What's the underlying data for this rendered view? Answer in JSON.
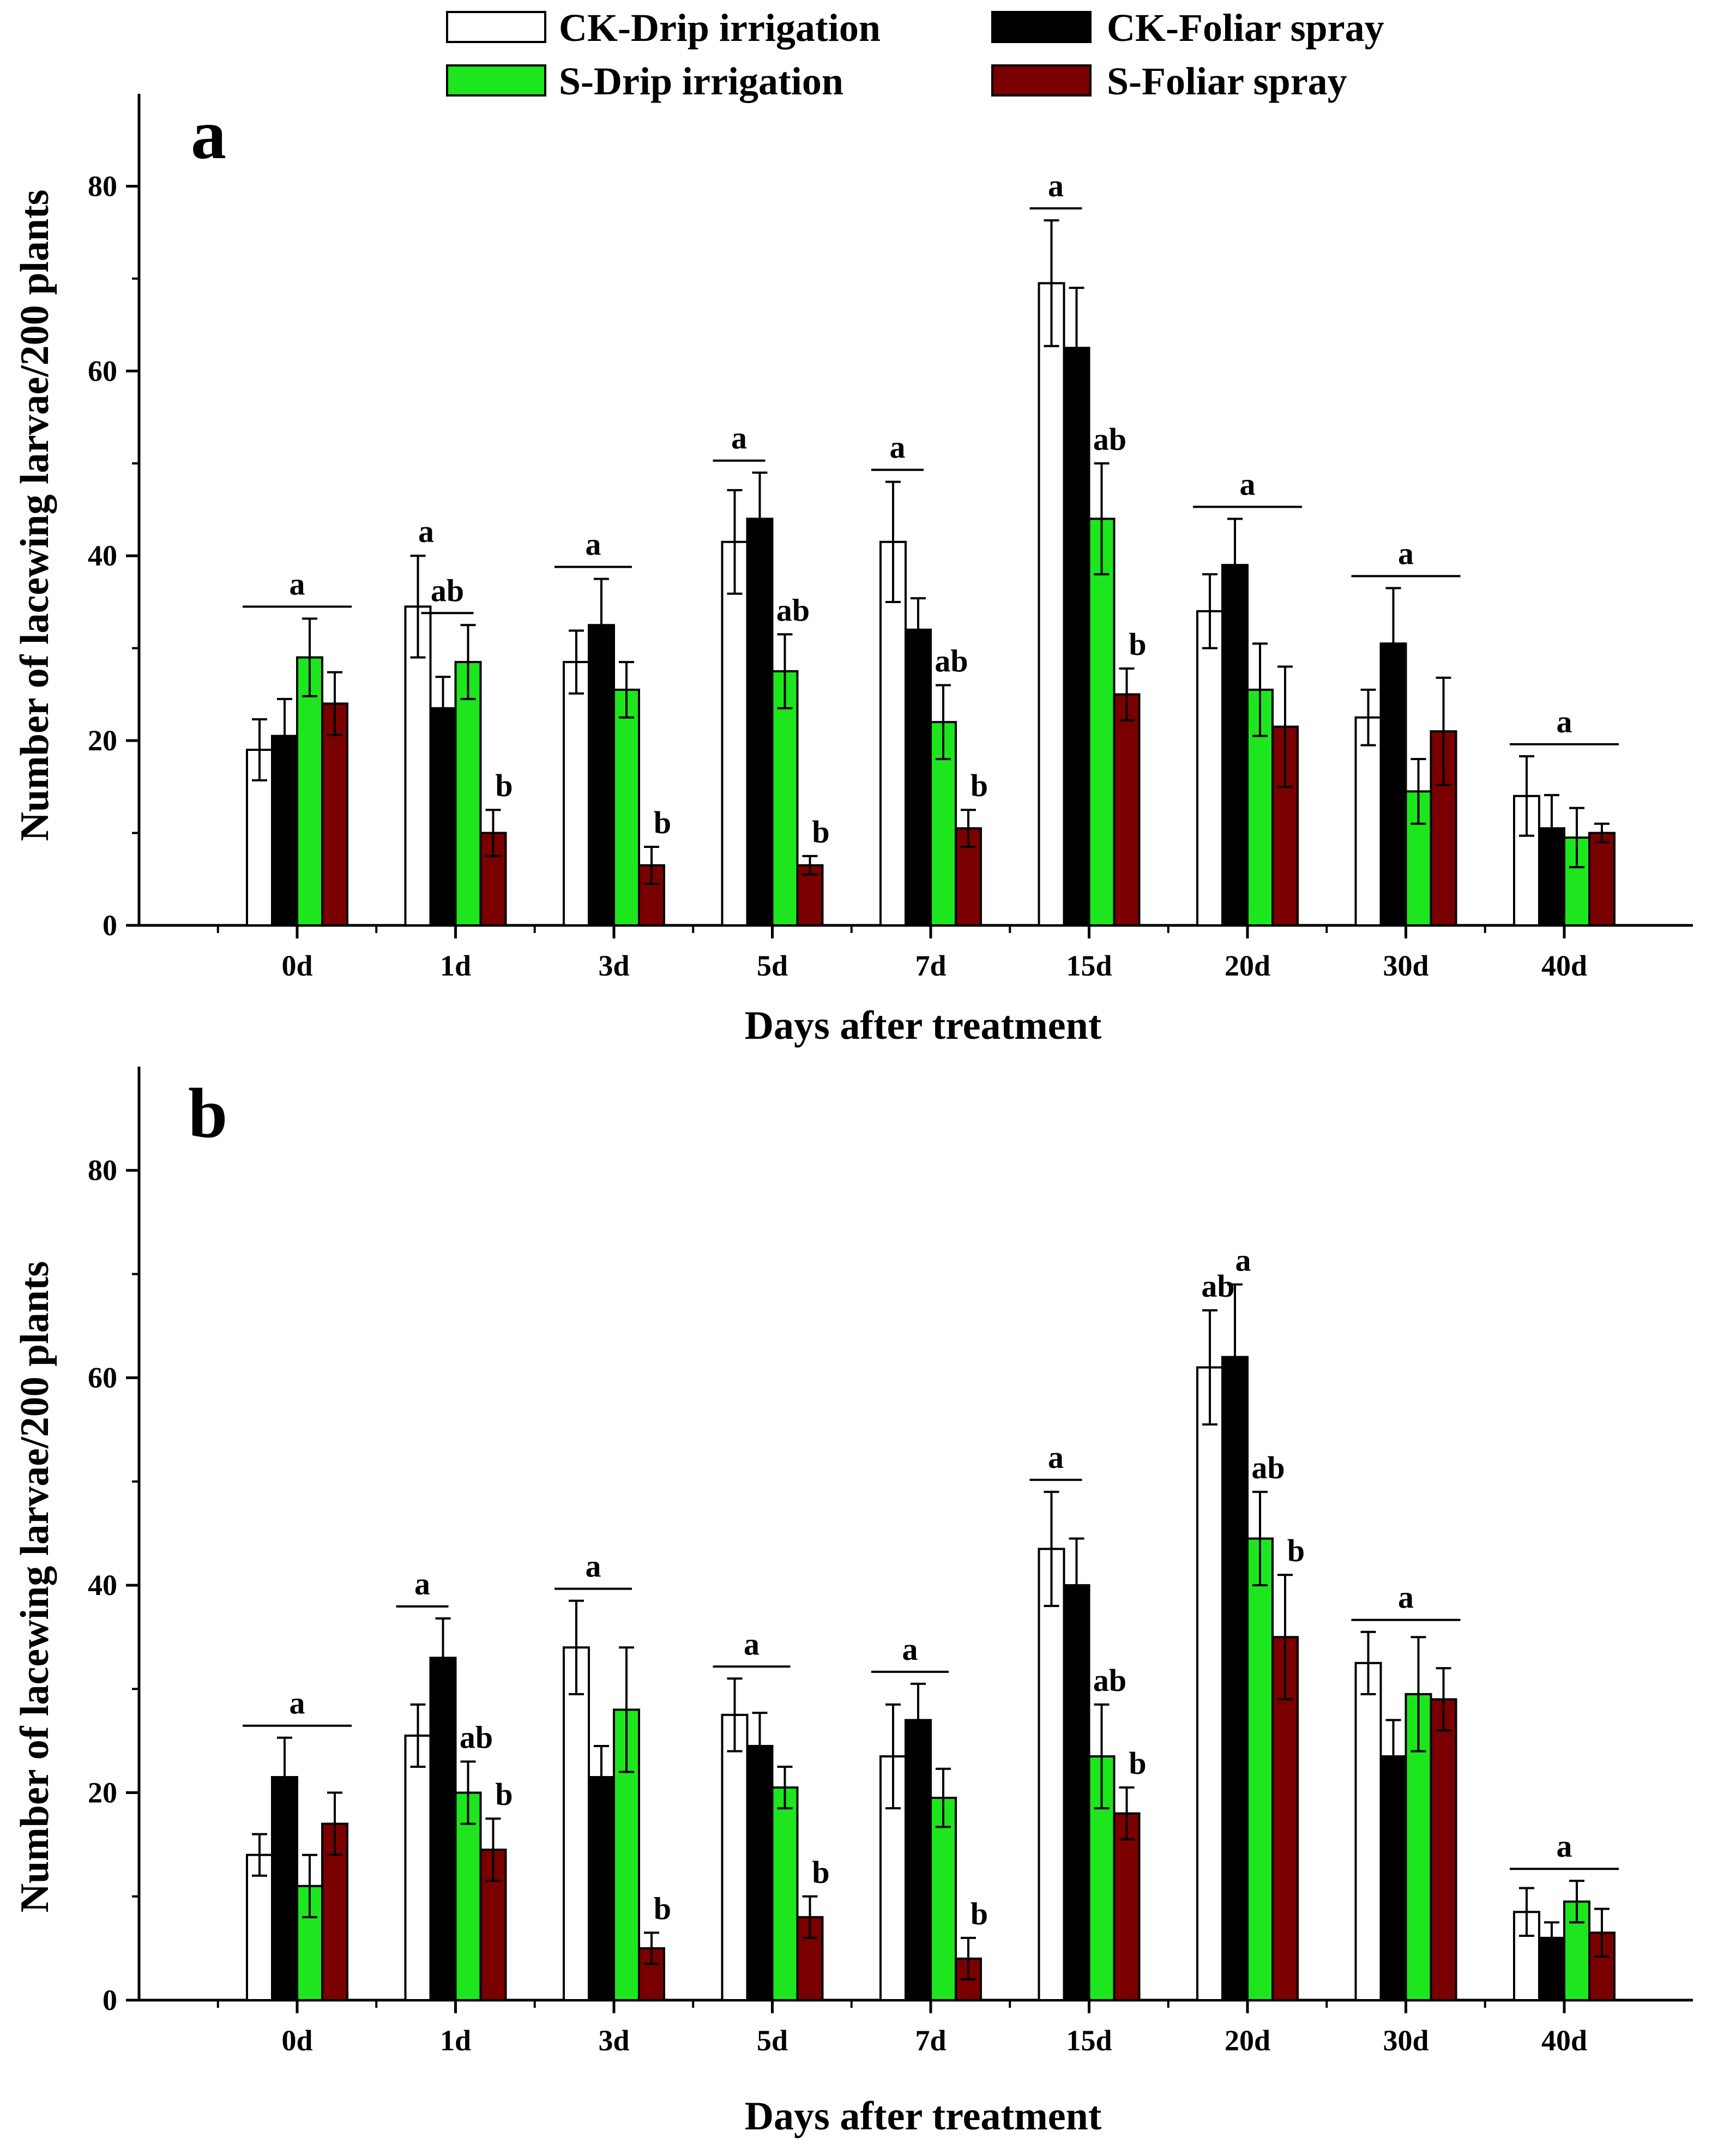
{
  "legend": {
    "items": [
      {
        "label": "CK-Drip irrigation",
        "color": "#ffffff"
      },
      {
        "label": "CK-Foliar spray",
        "color": "#000000"
      },
      {
        "label": "S-Drip irrigation",
        "color": "#1ee61e"
      },
      {
        "label": "S-Foliar spray",
        "color": "#7a0000"
      }
    ]
  },
  "chart_data": [
    {
      "type": "bar",
      "panel": "a",
      "title": "",
      "xlabel": "Days after treatment",
      "ylabel": "Number of lacewing larvae/200 plants",
      "ylim": [
        0,
        90
      ],
      "yticks": [
        0,
        20,
        40,
        60,
        80
      ],
      "categories": [
        "0d",
        "1d",
        "3d",
        "5d",
        "7d",
        "15d",
        "20d",
        "30d",
        "40d"
      ],
      "series": [
        {
          "name": "CK-Drip irrigation",
          "values": [
            19,
            34.5,
            28.5,
            41.5,
            41.5,
            69.5,
            34,
            22.5,
            14
          ],
          "errors": [
            3.3,
            5.5,
            3.4,
            5.6,
            6.5,
            6.8,
            4.0,
            3.0,
            4.3
          ]
        },
        {
          "name": "CK-Foliar spray",
          "values": [
            20.5,
            23.5,
            32.5,
            44,
            32,
            62.5,
            39,
            30.5,
            10.5
          ],
          "errors": [
            4.0,
            3.4,
            5.0,
            5.0,
            3.4,
            6.5,
            5.0,
            6.0,
            3.6
          ]
        },
        {
          "name": "S-Drip irrigation",
          "values": [
            29,
            28.5,
            25.5,
            27.5,
            22,
            44,
            25.5,
            14.5,
            9.5
          ],
          "errors": [
            4.2,
            4.0,
            3.0,
            4.0,
            4.0,
            6.0,
            5.0,
            3.5,
            3.2
          ]
        },
        {
          "name": "S-Foliar spray",
          "values": [
            24,
            10,
            6.5,
            6.5,
            10.5,
            25,
            21.5,
            21,
            10
          ],
          "errors": [
            3.4,
            2.5,
            2.0,
            1.0,
            2.0,
            2.8,
            6.5,
            5.8,
            1.0
          ]
        }
      ],
      "significance": [
        {
          "category": "0d",
          "labels": [
            {
              "text": "a",
              "bar": "group"
            }
          ]
        },
        {
          "category": "1d",
          "labels": [
            {
              "text": "a",
              "bar": 0
            },
            {
              "text": "ab",
              "bar": "pair12"
            },
            {
              "text": "b",
              "bar": 3
            }
          ]
        },
        {
          "category": "3d",
          "labels": [
            {
              "text": "a",
              "bar": "pair012"
            },
            {
              "text": "b",
              "bar": 3
            }
          ]
        },
        {
          "category": "5d",
          "labels": [
            {
              "text": "a",
              "bar": "pair01"
            },
            {
              "text": "ab",
              "bar": 2
            },
            {
              "text": "b",
              "bar": 3
            }
          ]
        },
        {
          "category": "7d",
          "labels": [
            {
              "text": "a",
              "bar": "pair01"
            },
            {
              "text": "ab",
              "bar": 2
            },
            {
              "text": "b",
              "bar": 3
            }
          ]
        },
        {
          "category": "15d",
          "labels": [
            {
              "text": "a",
              "bar": "pair01"
            },
            {
              "text": "ab",
              "bar": 2
            },
            {
              "text": "b",
              "bar": 3
            }
          ]
        },
        {
          "category": "20d",
          "labels": [
            {
              "text": "a",
              "bar": "group"
            }
          ]
        },
        {
          "category": "30d",
          "labels": [
            {
              "text": "a",
              "bar": "group"
            }
          ]
        },
        {
          "category": "40d",
          "labels": [
            {
              "text": "a",
              "bar": "group"
            }
          ]
        }
      ]
    },
    {
      "type": "bar",
      "panel": "b",
      "title": "",
      "xlabel": "Days after treatment",
      "ylabel": "Number of lacewing larvae/200 plants",
      "ylim": [
        0,
        90
      ],
      "yticks": [
        0,
        20,
        40,
        60,
        80
      ],
      "categories": [
        "0d",
        "1d",
        "3d",
        "5d",
        "7d",
        "15d",
        "20d",
        "30d",
        "40d"
      ],
      "series": [
        {
          "name": "CK-Drip irrigation",
          "values": [
            14,
            25.5,
            34,
            27.5,
            23.5,
            43.5,
            61,
            32.5,
            8.5
          ],
          "errors": [
            2.0,
            3.0,
            4.5,
            3.5,
            5.0,
            5.5,
            5.5,
            3.0,
            2.3
          ]
        },
        {
          "name": "CK-Foliar spray",
          "values": [
            21.5,
            33,
            21.5,
            24.5,
            27,
            40,
            62,
            23.5,
            6
          ],
          "errors": [
            3.8,
            3.8,
            3.0,
            3.2,
            3.5,
            4.5,
            7.0,
            3.5,
            1.5
          ]
        },
        {
          "name": "S-Drip irrigation",
          "values": [
            11,
            20,
            28,
            20.5,
            19.5,
            23.5,
            44.5,
            29.5,
            9.5
          ],
          "errors": [
            3.0,
            3.0,
            6.0,
            2.0,
            2.8,
            5.0,
            4.5,
            5.5,
            2.0
          ]
        },
        {
          "name": "S-Foliar spray",
          "values": [
            17,
            14.5,
            5,
            8,
            4,
            18,
            35,
            29,
            6.5
          ],
          "errors": [
            3.0,
            3.0,
            1.5,
            2.0,
            2.0,
            2.5,
            6.0,
            3.0,
            2.3
          ]
        }
      ],
      "significance": [
        {
          "category": "0d",
          "labels": [
            {
              "text": "a",
              "bar": "group"
            }
          ]
        },
        {
          "category": "1d",
          "labels": [
            {
              "text": "a",
              "bar": "pair01"
            },
            {
              "text": "ab",
              "bar": 2
            },
            {
              "text": "b",
              "bar": 3
            }
          ]
        },
        {
          "category": "3d",
          "labels": [
            {
              "text": "a",
              "bar": "pair012"
            },
            {
              "text": "b",
              "bar": 3
            }
          ]
        },
        {
          "category": "5d",
          "labels": [
            {
              "text": "a",
              "bar": "pair012"
            },
            {
              "text": "b",
              "bar": 3
            }
          ]
        },
        {
          "category": "7d",
          "labels": [
            {
              "text": "a",
              "bar": "pair012"
            },
            {
              "text": "b",
              "bar": 3
            }
          ]
        },
        {
          "category": "15d",
          "labels": [
            {
              "text": "a",
              "bar": "pair01"
            },
            {
              "text": "ab",
              "bar": 2
            },
            {
              "text": "b",
              "bar": 3
            }
          ]
        },
        {
          "category": "20d",
          "labels": [
            {
              "text": "ab",
              "bar": 0
            },
            {
              "text": "a",
              "bar": 1
            },
            {
              "text": "ab",
              "bar": 2
            },
            {
              "text": "b",
              "bar": 3
            }
          ]
        },
        {
          "category": "30d",
          "labels": [
            {
              "text": "a",
              "bar": "group"
            }
          ]
        },
        {
          "category": "40d",
          "labels": [
            {
              "text": "a",
              "bar": "group"
            }
          ]
        }
      ]
    }
  ]
}
